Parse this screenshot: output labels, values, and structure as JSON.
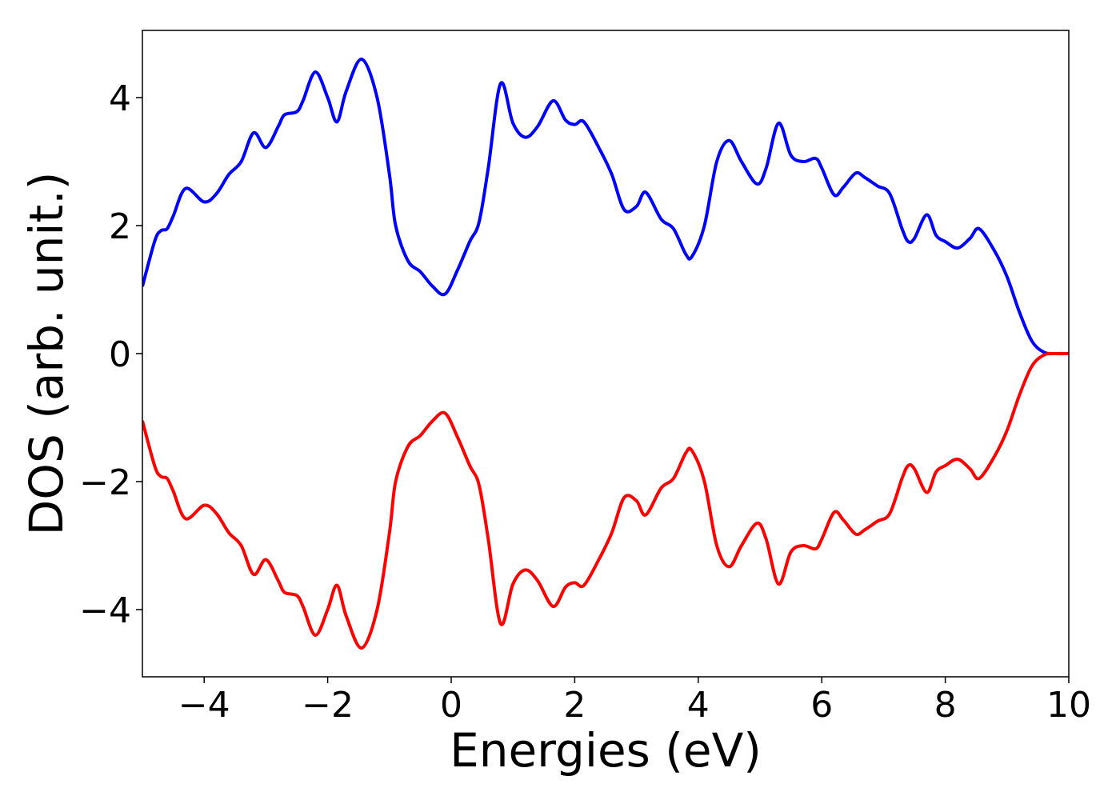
{
  "chart_data": {
    "type": "line",
    "xlabel": "Energies (eV)",
    "ylabel": "DOS (arb. unit.)",
    "x": [
      -5,
      -4.8,
      -4.7,
      -4.6,
      -4.5,
      -4.3,
      -4.0,
      -3.8,
      -3.6,
      -3.4,
      -3.2,
      -3.0,
      -2.8,
      -2.7,
      -2.5,
      -2.4,
      -2.2,
      -2.0,
      -1.85,
      -1.7,
      -1.45,
      -1.2,
      -1.0,
      -0.9,
      -0.7,
      -0.5,
      -0.3,
      -0.1,
      0.1,
      0.3,
      0.45,
      0.6,
      0.8,
      1.0,
      1.2,
      1.4,
      1.65,
      1.85,
      2.0,
      2.15,
      2.4,
      2.6,
      2.8,
      3.0,
      3.15,
      3.4,
      3.6,
      3.8,
      3.9,
      4.1,
      4.3,
      4.5,
      4.7,
      4.95,
      5.1,
      5.3,
      5.5,
      5.7,
      5.9,
      6.0,
      6.2,
      6.35,
      6.55,
      6.7,
      6.9,
      7.1,
      7.3,
      7.4,
      7.5,
      7.7,
      7.85,
      8.0,
      8.2,
      8.4,
      8.55,
      8.8,
      9.0,
      9.2,
      9.4,
      9.6,
      9.8,
      10
    ],
    "series": [
      {
        "color": "#0000ff",
        "values": [
          1.05,
          1.76,
          1.92,
          1.95,
          2.15,
          2.58,
          2.37,
          2.5,
          2.8,
          3.0,
          3.45,
          3.22,
          3.55,
          3.73,
          3.78,
          3.95,
          4.4,
          4.0,
          3.62,
          4.1,
          4.6,
          4.0,
          2.8,
          2.0,
          1.45,
          1.28,
          1.05,
          0.93,
          1.3,
          1.75,
          2.05,
          2.9,
          4.22,
          3.6,
          3.38,
          3.55,
          3.95,
          3.65,
          3.58,
          3.62,
          3.2,
          2.8,
          2.25,
          2.3,
          2.52,
          2.1,
          1.95,
          1.55,
          1.52,
          2.0,
          3.0,
          3.33,
          3.0,
          2.65,
          2.9,
          3.6,
          3.1,
          3.0,
          3.05,
          2.9,
          2.48,
          2.6,
          2.82,
          2.75,
          2.62,
          2.5,
          1.95,
          1.75,
          1.8,
          2.17,
          1.85,
          1.75,
          1.65,
          1.8,
          1.95,
          1.6,
          1.2,
          0.65,
          0.2,
          0.02,
          0,
          0
        ]
      },
      {
        "color": "#ff0000",
        "values": [
          -1.05,
          -1.76,
          -1.92,
          -1.95,
          -2.15,
          -2.58,
          -2.37,
          -2.5,
          -2.8,
          -3.0,
          -3.45,
          -3.22,
          -3.55,
          -3.73,
          -3.78,
          -3.95,
          -4.4,
          -4.0,
          -3.62,
          -4.1,
          -4.6,
          -4.0,
          -2.8,
          -2.0,
          -1.45,
          -1.28,
          -1.05,
          -0.93,
          -1.3,
          -1.75,
          -2.05,
          -2.9,
          -4.22,
          -3.6,
          -3.38,
          -3.55,
          -3.95,
          -3.65,
          -3.58,
          -3.62,
          -3.2,
          -2.8,
          -2.25,
          -2.3,
          -2.52,
          -2.1,
          -1.95,
          -1.55,
          -1.52,
          -2.0,
          -3.0,
          -3.33,
          -3.0,
          -2.65,
          -2.9,
          -3.6,
          -3.1,
          -3.0,
          -3.05,
          -2.9,
          -2.48,
          -2.6,
          -2.82,
          -2.75,
          -2.62,
          -2.5,
          -1.95,
          -1.75,
          -1.8,
          -2.17,
          -1.85,
          -1.75,
          -1.65,
          -1.8,
          -1.95,
          -1.6,
          -1.2,
          -0.65,
          -0.2,
          -0.02,
          0,
          0
        ]
      }
    ],
    "xlim": [
      -5,
      10
    ],
    "xticks": [
      {
        "value": -4,
        "label": "−4"
      },
      {
        "value": -2,
        "label": "−2"
      },
      0,
      2,
      4,
      6,
      8,
      10
    ],
    "ylim": [
      -5.05,
      5.05
    ],
    "yticks": [
      {
        "value": -4,
        "label": "−4"
      },
      {
        "value": -2,
        "label": "−2"
      },
      0,
      2,
      4
    ]
  }
}
